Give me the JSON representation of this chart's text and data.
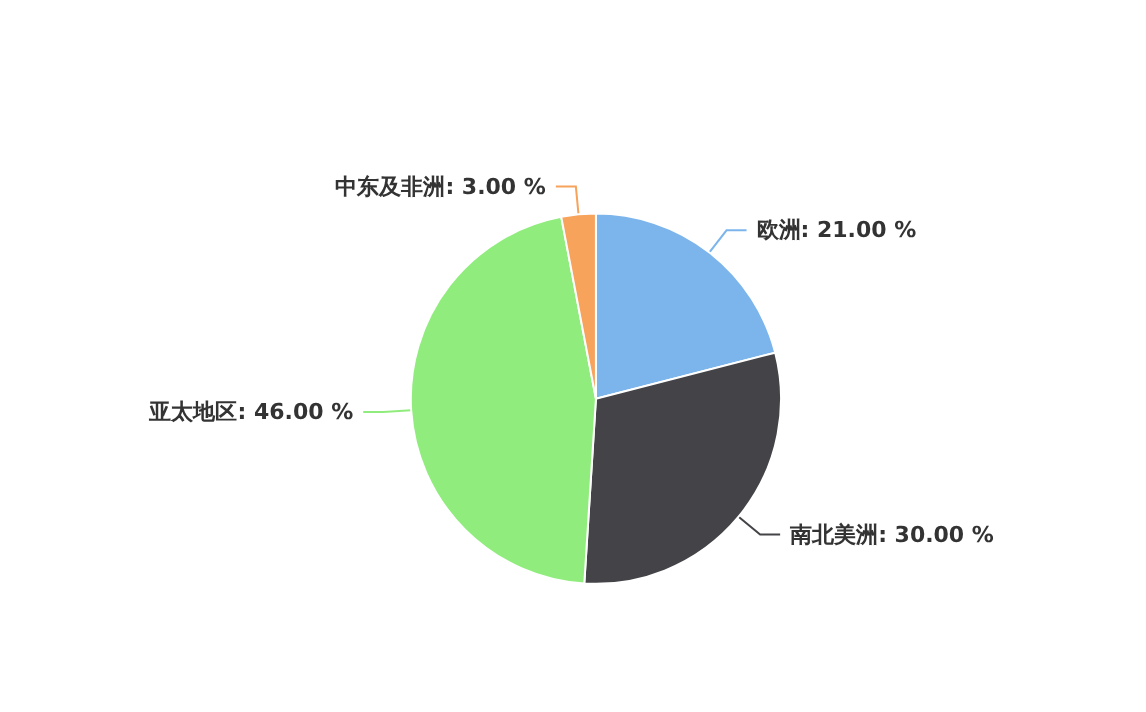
{
  "chart_data": {
    "type": "pie",
    "categories": [
      "欧洲",
      "南北美洲",
      "亚太地区",
      "中东及非洲"
    ],
    "values": [
      21,
      30,
      46,
      3
    ],
    "colors": [
      "#7cb5ec",
      "#434348",
      "#90ed7d",
      "#f7a35c"
    ],
    "value_labels": [
      "21.00 %",
      "30.00 %",
      "46.00 %",
      "3.00 %"
    ]
  }
}
